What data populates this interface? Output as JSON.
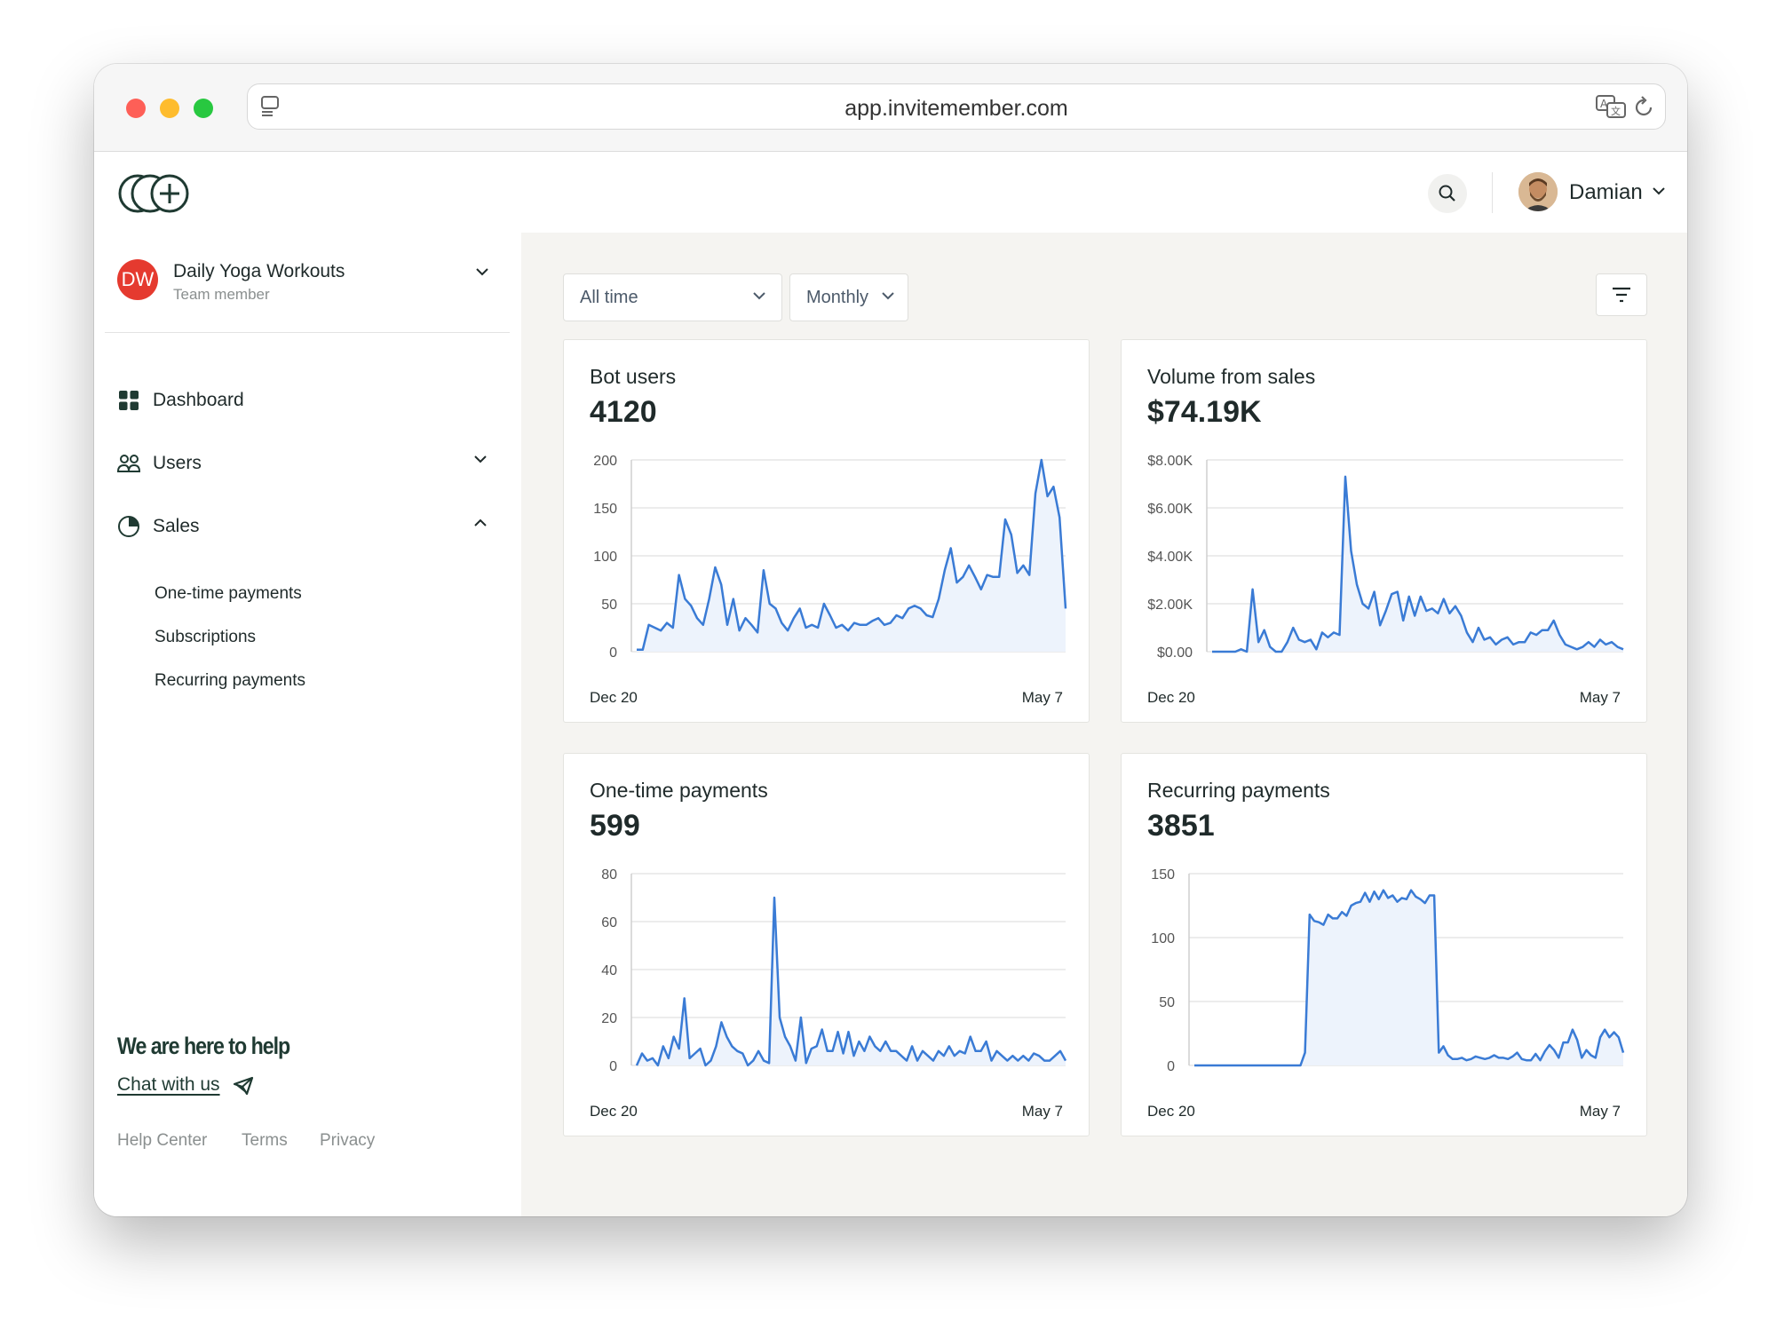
{
  "browser": {
    "url": "app.invitemember.com"
  },
  "header": {
    "user_name": "Damian"
  },
  "sidebar": {
    "project": {
      "initials": "DW",
      "name": "Daily Yoga Workouts",
      "role": "Team member"
    },
    "nav": [
      {
        "label": "Dashboard",
        "icon": "grid-icon"
      },
      {
        "label": "Users",
        "icon": "users-icon"
      },
      {
        "label": "Sales",
        "icon": "pie-chart-icon"
      }
    ],
    "sales_sub": [
      "One-time payments",
      "Subscriptions",
      "Recurring payments"
    ],
    "help_title": "We are here to help",
    "chat_link": "Chat with us",
    "footer_links": [
      "Help Center",
      "Terms",
      "Privacy"
    ]
  },
  "filters": {
    "period": "All time",
    "interval": "Monthly"
  },
  "colors": {
    "line": "#3a7bd5",
    "fill": "#edf3fc",
    "accent": "#e53a2f"
  },
  "cards": [
    {
      "title": "Bot users",
      "value": "4120"
    },
    {
      "title": "Volume from sales",
      "value": "$74.19K"
    },
    {
      "title": "One-time payments",
      "value": "599"
    },
    {
      "title": "Recurring payments",
      "value": "3851"
    }
  ],
  "chart_data": [
    {
      "type": "area",
      "title": "Bot users",
      "ylim": [
        0,
        200
      ],
      "yticks": [
        "0",
        "50",
        "100",
        "150",
        "200"
      ],
      "x_start_label": "Dec 20",
      "x_end_label": "May 7",
      "values": [
        2,
        2,
        28,
        25,
        22,
        30,
        25,
        80,
        55,
        48,
        35,
        28,
        55,
        88,
        70,
        28,
        55,
        22,
        35,
        28,
        20,
        85,
        50,
        45,
        30,
        22,
        35,
        45,
        25,
        28,
        25,
        50,
        38,
        25,
        28,
        22,
        30,
        28,
        28,
        32,
        35,
        28,
        30,
        38,
        35,
        45,
        48,
        45,
        38,
        36,
        55,
        85,
        108,
        72,
        78,
        90,
        78,
        65,
        80,
        78,
        78,
        138,
        122,
        82,
        90,
        80,
        165,
        200,
        162,
        172,
        140,
        45
      ],
      "grid": true
    },
    {
      "type": "area",
      "title": "Volume from sales",
      "ylim": [
        0,
        8000
      ],
      "yticks": [
        "$0.00",
        "$2.00K",
        "$4.00K",
        "$6.00K",
        "$8.00K"
      ],
      "x_start_label": "Dec 20",
      "x_end_label": "May 7",
      "values": [
        0,
        0,
        0,
        0,
        0,
        100,
        0,
        2600,
        400,
        900,
        200,
        0,
        0,
        400,
        1000,
        500,
        400,
        500,
        100,
        800,
        600,
        800,
        700,
        7300,
        4200,
        2800,
        2000,
        1800,
        2500,
        1100,
        1700,
        2400,
        2500,
        1300,
        2300,
        1500,
        2300,
        1700,
        1800,
        1600,
        2200,
        1600,
        1900,
        1500,
        800,
        400,
        1000,
        500,
        600,
        300,
        500,
        600,
        300,
        400,
        400,
        800,
        700,
        900,
        900,
        1300,
        700,
        300,
        200,
        100,
        200,
        400,
        200,
        500,
        300,
        400,
        200,
        100
      ],
      "grid": true
    },
    {
      "type": "area",
      "title": "One-time payments",
      "ylim": [
        0,
        80
      ],
      "yticks": [
        "0",
        "20",
        "40",
        "60",
        "80"
      ],
      "x_start_label": "Dec 20",
      "x_end_label": "May 7",
      "values": [
        0,
        5,
        2,
        3,
        0,
        8,
        3,
        12,
        7,
        28,
        3,
        5,
        7,
        0,
        2,
        8,
        18,
        12,
        8,
        6,
        5,
        0,
        2,
        6,
        2,
        1,
        70,
        20,
        12,
        8,
        2,
        20,
        1,
        7,
        8,
        15,
        6,
        6,
        14,
        5,
        14,
        4,
        10,
        6,
        12,
        8,
        6,
        10,
        6,
        6,
        4,
        2,
        8,
        2,
        6,
        4,
        2,
        6,
        4,
        8,
        4,
        6,
        5,
        12,
        6,
        6,
        10,
        2,
        6,
        4,
        2,
        4,
        2,
        4,
        2,
        5,
        4,
        2,
        2,
        4,
        6,
        2
      ],
      "grid": true
    },
    {
      "type": "area",
      "title": "Recurring payments",
      "ylim": [
        0,
        150
      ],
      "yticks": [
        "0",
        "50",
        "100",
        "150"
      ],
      "x_start_label": "Dec 20",
      "x_end_label": "May 7",
      "values": [
        0,
        0,
        0,
        0,
        0,
        0,
        0,
        0,
        0,
        0,
        0,
        0,
        0,
        0,
        0,
        0,
        0,
        0,
        0,
        0,
        0,
        0,
        0,
        0,
        10,
        118,
        113,
        112,
        110,
        118,
        115,
        115,
        120,
        117,
        125,
        127,
        128,
        135,
        128,
        136,
        130,
        137,
        131,
        133,
        128,
        131,
        130,
        137,
        132,
        130,
        127,
        133,
        133,
        10,
        15,
        8,
        5,
        5,
        6,
        4,
        5,
        7,
        6,
        5,
        6,
        8,
        6,
        6,
        5,
        7,
        10,
        5,
        4,
        4,
        9,
        4,
        11,
        16,
        12,
        6,
        18,
        18,
        28,
        20,
        6,
        12,
        8,
        6,
        22,
        28,
        22,
        26,
        22,
        10
      ],
      "grid": true
    }
  ]
}
